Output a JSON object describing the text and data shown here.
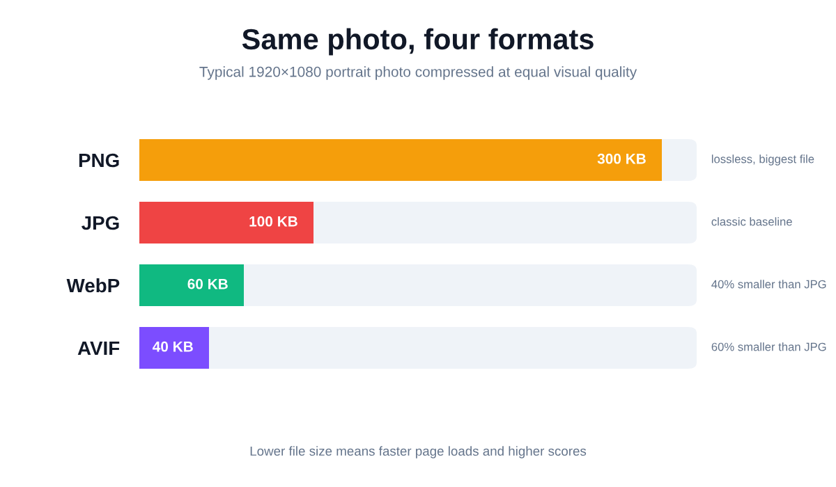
{
  "chart_data": {
    "type": "bar",
    "orientation": "horizontal",
    "title": "Same photo, four formats",
    "subtitle": "Typical 1920×1080 portrait photo compressed at equal visual quality",
    "categories": [
      "PNG",
      "JPG",
      "WebP",
      "AVIF"
    ],
    "values": [
      300,
      100,
      60,
      40
    ],
    "colors": [
      "#f59e0b",
      "#ef4444",
      "#10b981",
      "#7c4dff"
    ],
    "value_labels": [
      "300 KB",
      "100 KB",
      "60 KB",
      "40 KB"
    ],
    "xlim": [
      0,
      320
    ],
    "tick_labels": "y",
    "grid": false,
    "legend": false,
    "annotations": [
      "lossless, biggest file",
      "classic baseline",
      "40% smaller than JPG",
      "60% smaller than JPG",
      "Lower file size means faster page loads and higher scores"
    ]
  }
}
